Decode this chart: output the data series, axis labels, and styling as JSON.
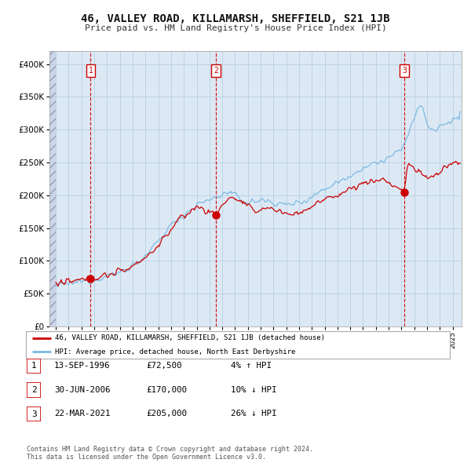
{
  "title": "46, VALLEY ROAD, KILLAMARSH, SHEFFIELD, S21 1JB",
  "subtitle": "Price paid vs. HM Land Registry's House Price Index (HPI)",
  "legend_red": "46, VALLEY ROAD, KILLAMARSH, SHEFFIELD, S21 1JB (detached house)",
  "legend_blue": "HPI: Average price, detached house, North East Derbyshire",
  "sale_years": [
    1996.71,
    2006.5,
    2021.23
  ],
  "sale_prices": [
    72500,
    170000,
    205000
  ],
  "table_rows": [
    [
      "1",
      "13-SEP-1996",
      "£72,500",
      "4% ↑ HPI"
    ],
    [
      "2",
      "30-JUN-2006",
      "£170,000",
      "10% ↓ HPI"
    ],
    [
      "3",
      "22-MAR-2021",
      "£205,000",
      "26% ↓ HPI"
    ]
  ],
  "hpi_color": "#7ab8e0",
  "price_color": "#cc0000",
  "dot_color": "#cc0000",
  "vline_color": "#cc0000",
  "plot_bg": "#dce9f5",
  "grid_color": "#b8cfe0",
  "copyright": "Contains HM Land Registry data © Crown copyright and database right 2024.\nThis data is licensed under the Open Government Licence v3.0.",
  "ylim": [
    0,
    420000
  ],
  "xlim_start": 1993.5,
  "xlim_end": 2025.7,
  "year_start": 1994,
  "year_end": 2025
}
